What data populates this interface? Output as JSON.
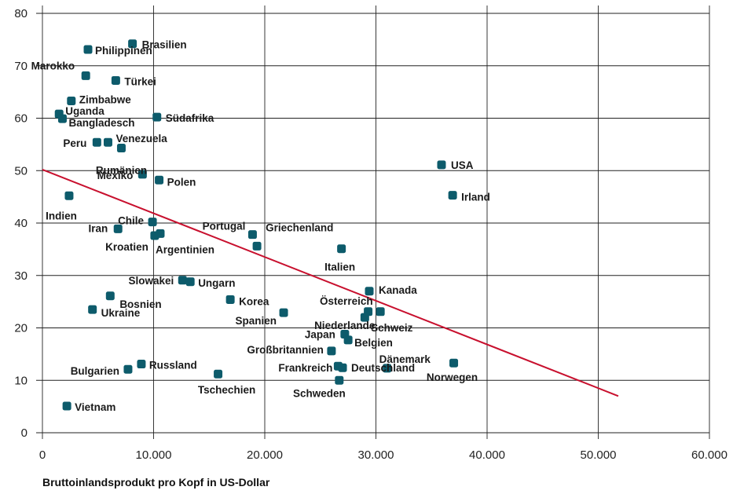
{
  "chart_data": {
    "type": "scatter",
    "title": "",
    "xlabel": "Bruttoinlandsprodukt pro Kopf in US-Dollar",
    "ylabel": "",
    "xlim": [
      0,
      60000
    ],
    "ylim": [
      0,
      80
    ],
    "x_ticks": [
      0,
      10000,
      20000,
      30000,
      40000,
      50000,
      60000
    ],
    "x_tick_labels": [
      "0",
      "10.000",
      "20.000",
      "30.000",
      "40.000",
      "50.000",
      "60.000"
    ],
    "y_ticks": [
      0,
      10,
      20,
      30,
      40,
      50,
      60,
      70,
      80
    ],
    "y_tick_labels": [
      "0",
      "10",
      "20",
      "30",
      "40",
      "50",
      "60",
      "70",
      "80"
    ],
    "grid": true,
    "colors": {
      "point": "#0d5b6b",
      "trendline": "#c8102e",
      "grid": "#222222"
    },
    "trendline": {
      "x": [
        0,
        51800
      ],
      "y": [
        50.2,
        7
      ]
    },
    "points": [
      {
        "label": "Brasilien",
        "x": 8100,
        "y": 74.2
      },
      {
        "label": "Philippinen",
        "x": 4100,
        "y": 73.1
      },
      {
        "label": "Marokko",
        "x": 3900,
        "y": 68.1
      },
      {
        "label": "Türkei",
        "x": 6600,
        "y": 67.2
      },
      {
        "label": "Zimbabwe",
        "x": 2600,
        "y": 63.3
      },
      {
        "label": "Uganda",
        "x": 1500,
        "y": 60.8
      },
      {
        "label": "Bangladesch",
        "x": 1800,
        "y": 59.9
      },
      {
        "label": "Südafrika",
        "x": 10300,
        "y": 60.2
      },
      {
        "label": "Peru",
        "x": 4900,
        "y": 55.4
      },
      {
        "label": "Venezuela",
        "x": 5900,
        "y": 55.4
      },
      {
        "label": "Rumänien",
        "x": 7100,
        "y": 54.3
      },
      {
        "label": "Mexiko",
        "x": 9000,
        "y": 49.3
      },
      {
        "label": "Polen",
        "x": 10500,
        "y": 48.2
      },
      {
        "label": "Indien",
        "x": 2400,
        "y": 45.2
      },
      {
        "label": "Chile",
        "x": 9900,
        "y": 40.2
      },
      {
        "label": "Iran",
        "x": 6800,
        "y": 38.9
      },
      {
        "label": "Kroatien",
        "x": 10100,
        "y": 37.6
      },
      {
        "label": "Argentinien",
        "x": 10600,
        "y": 38.0
      },
      {
        "label": "Portugal",
        "x": 18900,
        "y": 37.8
      },
      {
        "label": "Griechenland",
        "x": 19300,
        "y": 35.6
      },
      {
        "label": "Italien",
        "x": 26900,
        "y": 35.1
      },
      {
        "label": "USA",
        "x": 35900,
        "y": 51.1
      },
      {
        "label": "Irland",
        "x": 36900,
        "y": 45.3
      },
      {
        "label": "Slowakei",
        "x": 12600,
        "y": 29.1
      },
      {
        "label": "Ungarn",
        "x": 13300,
        "y": 28.8
      },
      {
        "label": "Kanada",
        "x": 29400,
        "y": 27.0
      },
      {
        "label": "Bosnien",
        "x": 6100,
        "y": 26.1
      },
      {
        "label": "Korea",
        "x": 16900,
        "y": 25.4
      },
      {
        "label": "Ukraine",
        "x": 4500,
        "y": 23.5
      },
      {
        "label": "Österreich",
        "x": 29300,
        "y": 23.1
      },
      {
        "label": "Spanien",
        "x": 21700,
        "y": 22.9
      },
      {
        "label": "Schweiz",
        "x": 30400,
        "y": 23.1
      },
      {
        "label": "Niederlande",
        "x": 29000,
        "y": 22.0
      },
      {
        "label": "Japan",
        "x": 27200,
        "y": 18.8
      },
      {
        "label": "Belgien",
        "x": 27500,
        "y": 17.7
      },
      {
        "label": "Großbritannien",
        "x": 26000,
        "y": 15.6
      },
      {
        "label": "Dänemark",
        "x": 31000,
        "y": 12.3
      },
      {
        "label": "Frankreich",
        "x": 26600,
        "y": 12.7
      },
      {
        "label": "Norwegen",
        "x": 37000,
        "y": 13.3
      },
      {
        "label": "Russland",
        "x": 8900,
        "y": 13.1
      },
      {
        "label": "Bulgarien",
        "x": 7700,
        "y": 12.1
      },
      {
        "label": "Tschechien",
        "x": 15800,
        "y": 11.2
      },
      {
        "label": "Deutschland",
        "x": 27000,
        "y": 12.4
      },
      {
        "label": "Schweden",
        "x": 26700,
        "y": 10.0
      },
      {
        "label": "Vietnam",
        "x": 2200,
        "y": 5.1
      }
    ]
  }
}
